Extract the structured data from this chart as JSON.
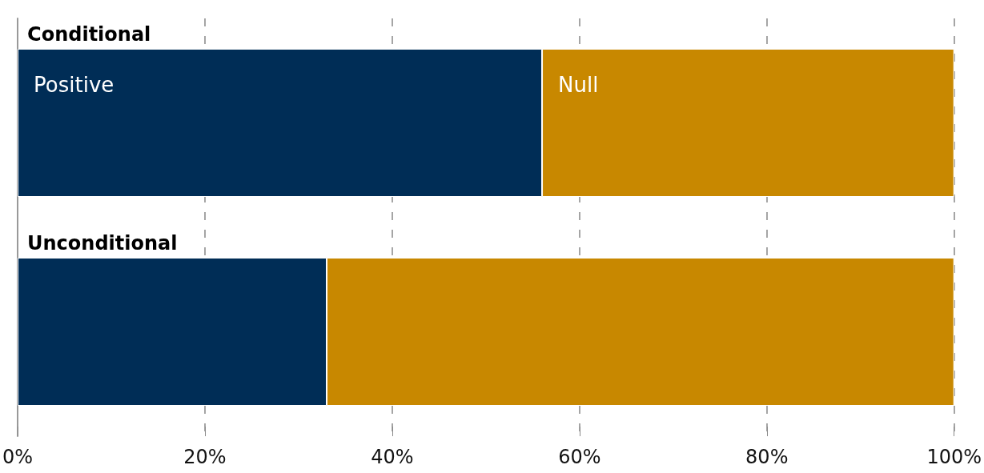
{
  "chart_data": {
    "type": "bar",
    "orientation": "horizontal",
    "stacked": true,
    "categories": [
      "Conditional",
      "Unconditional"
    ],
    "series": [
      {
        "name": "Positive",
        "color": "#002d56",
        "values": [
          56,
          33
        ]
      },
      {
        "name": "Null",
        "color": "#c88800",
        "values": [
          44,
          67
        ]
      }
    ],
    "xlim": [
      0,
      100
    ],
    "xticks": [
      {
        "value": 0,
        "label": "0%"
      },
      {
        "value": 20,
        "label": "20%"
      },
      {
        "value": 40,
        "label": "40%"
      },
      {
        "value": 60,
        "label": "60%"
      },
      {
        "value": 80,
        "label": "80%"
      },
      {
        "value": 100,
        "label": "100%"
      }
    ],
    "grid": "x",
    "legend": false
  }
}
